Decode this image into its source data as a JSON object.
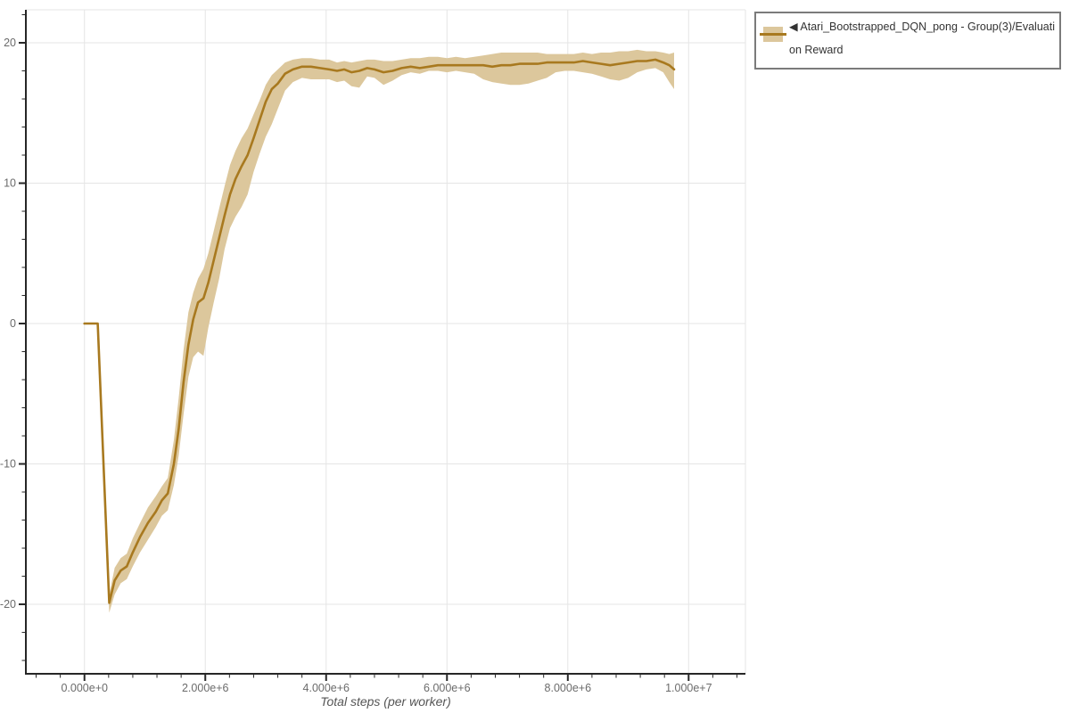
{
  "figure": {
    "background": "#ffffff",
    "plot_background": "#ffffff",
    "grid_color": "#e5e5e5",
    "spine_color": "#262626",
    "tick_color": "#262626",
    "tick_label_color": "#6b6b6b",
    "axis_title_color": "#555555"
  },
  "legend": {
    "label": "◀ Atari_Bootstrapped_DQN_pong - Group(3)/Evaluation Reward",
    "border_color": "#7b7b7b"
  },
  "chart_data": {
    "type": "line",
    "title": "",
    "xlabel": "Total steps (per worker)",
    "ylabel": "",
    "grid": true,
    "legend_position": "outside-top-right",
    "series_name": "Atari_Bootstrapped_DQN_pong - Group(3)/Evaluation Reward",
    "line_color": "#a8791f",
    "band_color": "#dcc79c",
    "xlim": [
      -970000,
      10940000
    ],
    "ylim": [
      -24.95,
      22.35
    ],
    "x_ticks": {
      "values": [
        0,
        2000000,
        4000000,
        6000000,
        8000000,
        10000000
      ],
      "labels": [
        "0.000e+0",
        "2.000e+6",
        "4.000e+6",
        "6.000e+6",
        "8.000e+6",
        "1.000e+7"
      ],
      "minor_step": 400000
    },
    "y_ticks": {
      "values": [
        20,
        10,
        0,
        -10,
        -20
      ],
      "labels": [
        "20",
        "10",
        "0",
        "-10",
        "-20"
      ],
      "minor_step": 2
    },
    "x": [
      0,
      220000,
      410000,
      500000,
      600000,
      700000,
      800000,
      920000,
      1050000,
      1180000,
      1280000,
      1380000,
      1480000,
      1560000,
      1640000,
      1720000,
      1800000,
      1880000,
      1970000,
      2050000,
      2140000,
      2230000,
      2320000,
      2410000,
      2500000,
      2600000,
      2700000,
      2800000,
      2900000,
      3000000,
      3100000,
      3200000,
      3320000,
      3450000,
      3600000,
      3750000,
      3900000,
      4050000,
      4180000,
      4300000,
      4420000,
      4550000,
      4680000,
      4800000,
      4950000,
      5100000,
      5250000,
      5400000,
      5550000,
      5700000,
      5850000,
      6000000,
      6150000,
      6300000,
      6450000,
      6600000,
      6750000,
      6900000,
      7050000,
      7200000,
      7350000,
      7500000,
      7650000,
      7800000,
      7950000,
      8100000,
      8250000,
      8400000,
      8550000,
      8700000,
      8850000,
      9000000,
      9150000,
      9300000,
      9450000,
      9580000,
      9680000,
      9760000
    ],
    "mean": [
      0.0,
      0.0,
      -19.9,
      -18.3,
      -17.6,
      -17.3,
      -16.3,
      -15.2,
      -14.2,
      -13.4,
      -12.6,
      -12.1,
      -10.0,
      -7.5,
      -4.2,
      -1.5,
      0.3,
      1.5,
      1.8,
      2.9,
      4.5,
      6.1,
      7.7,
      9.2,
      10.3,
      11.2,
      12.0,
      13.2,
      14.5,
      15.8,
      16.7,
      17.1,
      17.8,
      18.1,
      18.3,
      18.3,
      18.2,
      18.1,
      18.0,
      18.1,
      17.9,
      18.0,
      18.2,
      18.1,
      17.9,
      18.0,
      18.2,
      18.3,
      18.2,
      18.3,
      18.4,
      18.4,
      18.4,
      18.4,
      18.4,
      18.4,
      18.3,
      18.4,
      18.4,
      18.5,
      18.5,
      18.5,
      18.6,
      18.6,
      18.6,
      18.6,
      18.7,
      18.6,
      18.5,
      18.4,
      18.5,
      18.6,
      18.7,
      18.7,
      18.8,
      18.6,
      18.4,
      18.1
    ],
    "lower": [
      0.0,
      0.0,
      -20.6,
      -19.3,
      -18.5,
      -18.2,
      -17.3,
      -16.3,
      -15.4,
      -14.5,
      -13.7,
      -13.3,
      -11.5,
      -9.4,
      -6.5,
      -3.8,
      -2.4,
      -2.0,
      -2.3,
      -0.3,
      1.5,
      3.2,
      5.3,
      6.8,
      7.6,
      8.3,
      9.2,
      10.8,
      12.1,
      13.3,
      14.2,
      15.3,
      16.6,
      17.2,
      17.5,
      17.4,
      17.4,
      17.4,
      17.2,
      17.3,
      16.9,
      16.8,
      17.6,
      17.5,
      17.0,
      17.3,
      17.7,
      17.9,
      17.8,
      18.0,
      18.0,
      17.9,
      18.0,
      17.9,
      17.8,
      17.4,
      17.2,
      17.1,
      17.0,
      17.0,
      17.1,
      17.3,
      17.5,
      17.9,
      18.0,
      18.0,
      17.9,
      17.8,
      17.6,
      17.4,
      17.3,
      17.5,
      17.9,
      18.1,
      18.2,
      17.9,
      17.2,
      16.7
    ],
    "upper": [
      0.0,
      0.0,
      -19.3,
      -17.4,
      -16.7,
      -16.4,
      -15.3,
      -14.2,
      -13.1,
      -12.3,
      -11.6,
      -11.0,
      -8.3,
      -5.3,
      -1.9,
      0.8,
      2.2,
      3.2,
      3.9,
      5.0,
      6.6,
      8.2,
      9.8,
      11.3,
      12.3,
      13.2,
      13.9,
      14.9,
      15.9,
      17.0,
      17.7,
      18.1,
      18.6,
      18.8,
      18.9,
      18.9,
      18.8,
      18.8,
      18.6,
      18.7,
      18.6,
      18.7,
      18.8,
      18.8,
      18.7,
      18.7,
      18.8,
      18.9,
      18.9,
      19.0,
      19.0,
      18.9,
      19.0,
      18.9,
      19.0,
      19.1,
      19.2,
      19.3,
      19.3,
      19.3,
      19.3,
      19.3,
      19.2,
      19.2,
      19.2,
      19.2,
      19.3,
      19.2,
      19.3,
      19.3,
      19.4,
      19.4,
      19.5,
      19.4,
      19.4,
      19.3,
      19.2,
      19.3
    ]
  }
}
